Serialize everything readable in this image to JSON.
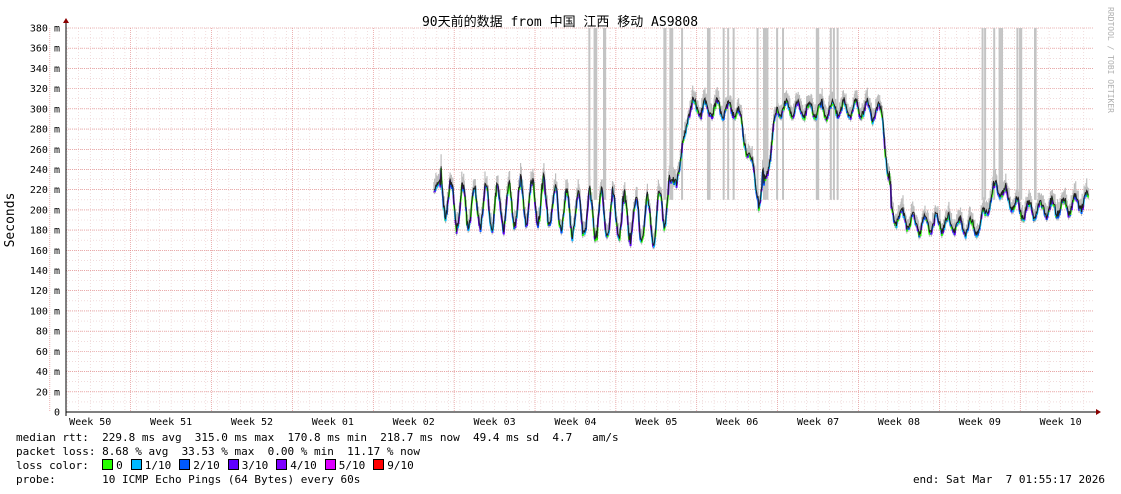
{
  "chart_data": {
    "type": "line",
    "title": "90天前的数据 from 中国 江西 移动 AS9808",
    "ylabel": "Seconds",
    "ylim": [
      0,
      0.38
    ],
    "yticks": [
      {
        "value": 0,
        "label": "0"
      },
      {
        "value": 0.02,
        "label": "20 m"
      },
      {
        "value": 0.04,
        "label": "40 m"
      },
      {
        "value": 0.06,
        "label": "60 m"
      },
      {
        "value": 0.08,
        "label": "80 m"
      },
      {
        "value": 0.1,
        "label": "100 m"
      },
      {
        "value": 0.12,
        "label": "120 m"
      },
      {
        "value": 0.14,
        "label": "140 m"
      },
      {
        "value": 0.16,
        "label": "160 m"
      },
      {
        "value": 0.18,
        "label": "180 m"
      },
      {
        "value": 0.2,
        "label": "200 m"
      },
      {
        "value": 0.22,
        "label": "220 m"
      },
      {
        "value": 0.24,
        "label": "240 m"
      },
      {
        "value": 0.26,
        "label": "260 m"
      },
      {
        "value": 0.28,
        "label": "280 m"
      },
      {
        "value": 0.3,
        "label": "300 m"
      },
      {
        "value": 0.32,
        "label": "320 m"
      },
      {
        "value": 0.34,
        "label": "340 m"
      },
      {
        "value": 0.36,
        "label": "360 m"
      },
      {
        "value": 0.38,
        "label": "380 m"
      }
    ],
    "xticks": [
      "Week 50",
      "Week 51",
      "Week 52",
      "Week 01",
      "Week 02",
      "Week 03",
      "Week 04",
      "Week 05",
      "Week 06",
      "Week 07",
      "Week 08",
      "Week 09",
      "Week 10"
    ],
    "week_range": [
      49.7,
      62.4
    ],
    "grid": true,
    "series": [
      {
        "name": "median rtt",
        "color": "#202020",
        "segments": [
          {
            "week": 54.25,
            "median": 0.228
          },
          {
            "week": 54.5,
            "median": 0.205
          },
          {
            "week": 55.0,
            "median": 0.203
          },
          {
            "week": 55.5,
            "median": 0.21
          },
          {
            "week": 56.0,
            "median": 0.197
          },
          {
            "week": 56.5,
            "median": 0.195
          },
          {
            "week": 57.0,
            "median": 0.19
          },
          {
            "week": 57.3,
            "median": 0.245
          },
          {
            "week": 57.4,
            "median": 0.302
          },
          {
            "week": 58.0,
            "median": 0.3
          },
          {
            "week": 58.3,
            "median": 0.208
          },
          {
            "week": 58.5,
            "median": 0.301
          },
          {
            "week": 59.0,
            "median": 0.3
          },
          {
            "week": 59.5,
            "median": 0.301
          },
          {
            "week": 59.8,
            "median": 0.298
          },
          {
            "week": 59.9,
            "median": 0.197
          },
          {
            "week": 60.3,
            "median": 0.185
          },
          {
            "week": 60.5,
            "median": 0.188
          },
          {
            "week": 61.0,
            "median": 0.183
          },
          {
            "week": 61.2,
            "median": 0.225
          },
          {
            "week": 61.5,
            "median": 0.2
          },
          {
            "week": 62.0,
            "median": 0.203
          },
          {
            "week": 62.35,
            "median": 0.21
          }
        ]
      }
    ],
    "loss_spikes_weeks": [
      56.3,
      57.2,
      57.8,
      58.4,
      59.1,
      61.2,
      61.6
    ]
  },
  "legend": {
    "median_rtt": "median rtt:  229.8 ms avg  315.0 ms max  170.8 ms min  218.7 ms now  49.4 ms sd  4.7   am/s",
    "packet_loss": "packet loss: 8.68 % avg  33.53 % max  0.00 % min  11.17 % now",
    "loss_color_label": "loss color:",
    "loss_colors": [
      {
        "label": "0",
        "color": "#26ff00"
      },
      {
        "label": "1/10",
        "color": "#00b8ff"
      },
      {
        "label": "2/10",
        "color": "#0059ff"
      },
      {
        "label": "3/10",
        "color": "#5e00ff"
      },
      {
        "label": "4/10",
        "color": "#7e00ff"
      },
      {
        "label": "5/10",
        "color": "#dd00ff"
      },
      {
        "label": "9/10",
        "color": "#ff0000"
      }
    ],
    "probe": "probe:       10 ICMP Echo Pings (64 Bytes) every 60s",
    "end": "end: Sat Mar  7 01:55:17 2026"
  },
  "watermark": "RRDTOOL / TOBI OETIKER"
}
